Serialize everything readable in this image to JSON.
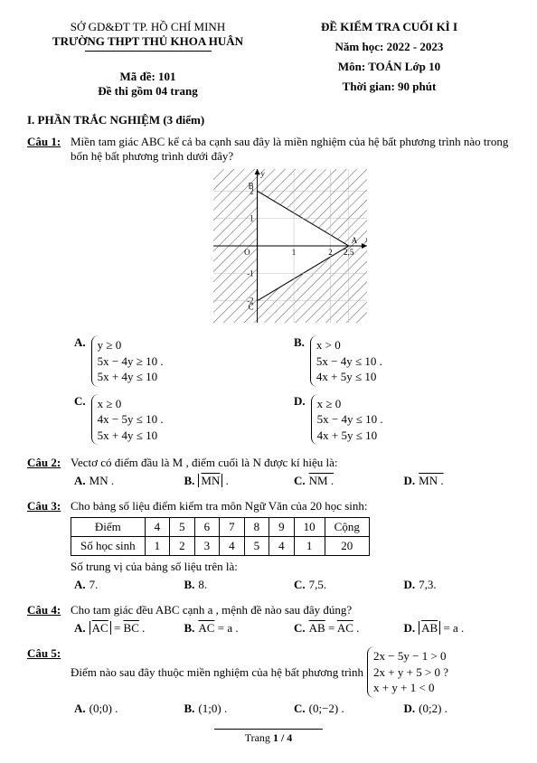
{
  "header": {
    "left_line1": "SỞ GD&ĐT TP. HỒ CHÍ MINH",
    "left_line2": "TRƯỜNG THPT THỦ KHOA HUÂN",
    "left_code": "Mã đề: 101",
    "left_pages": "Đề thi gồm 04 trang",
    "right_line1": "ĐỀ KIỂM TRA CUỐI KÌ I",
    "right_year": "Năm học: 2022 - 2023",
    "right_subject": "Môn: TOÁN Lớp 10",
    "right_time": "Thời gian: 90 phút"
  },
  "section1_title": "I. PHẦN TRẮC NGHIỆM (3 điểm)",
  "q1": {
    "label": "Câu 1:",
    "text": "Miền tam giác  ABC  kể cả ba cạnh sau đây là miền nghiệm của hệ bất phương trình nào trong bốn hệ bất phương trình dưới đây?",
    "A": [
      "y ≥ 0",
      "5x − 4y ≥ 10 .",
      "5x + 4y ≤ 10"
    ],
    "B": [
      "x > 0",
      "5x − 4y ≤ 10 .",
      "4x + 5y ≤ 10"
    ],
    "C": [
      "x ≥ 0",
      "4x − 5y ≤ 10 .",
      "5x + 4y ≤ 10"
    ],
    "D": [
      "x ≥ 0",
      "5x − 4y ≤ 10 .",
      "4x + 5y ≤ 10"
    ]
  },
  "q1_chart": {
    "type": "region-plot",
    "width": 170,
    "height": 170,
    "background": "#ffffff",
    "axis_color": "#000000",
    "grid_color": "#bbbbbb",
    "hatch_color": "#555555",
    "region_color": "rgba(255,255,255,0)",
    "xlim": [
      -1.2,
      3.0
    ],
    "ylim": [
      -2.8,
      2.8
    ],
    "points": {
      "A": [
        2.5,
        0
      ],
      "B": [
        0,
        2
      ],
      "C": [
        0,
        -2
      ]
    },
    "x_ticks": [
      1,
      2,
      2.5
    ],
    "y_ticks": [
      -2,
      -1,
      1,
      2
    ],
    "x_label": "x",
    "y_label": "y",
    "axis_fontsize": 9
  },
  "q2": {
    "label": "Câu 2:",
    "text": "Vectơ có điểm đầu là  M , điểm cuối là  N  được kí hiệu là:",
    "A": "MN .",
    "C": "NM .",
    "D": "MN ."
  },
  "q3": {
    "label": "Câu 3:",
    "text": "Cho bảng số liệu điểm kiểm tra môn Ngữ Văn của 20 học sinh:",
    "table": {
      "type": "table",
      "columns": [
        "Điểm",
        "4",
        "5",
        "6",
        "7",
        "8",
        "9",
        "10",
        "Cộng"
      ],
      "rows": [
        [
          "Số học sinh",
          "1",
          "2",
          "3",
          "4",
          "5",
          "4",
          "1",
          "20"
        ]
      ],
      "border_color": "#000000",
      "cell_padding": "2px 10px",
      "fontsize": 12
    },
    "after": "Số trung vị của bảng số liệu trên là:",
    "A": "7.",
    "B": "8.",
    "C": "7,5.",
    "D": "7,3."
  },
  "q4": {
    "label": "Câu 4:",
    "text": "Cho tam giác đều  ABC  cạnh  a , mệnh đề nào sau đây đúng?"
  },
  "q5": {
    "label": "Câu 5:",
    "text_before": "Điểm nào sau đây thuộc miền nghiệm của hệ bất phương trình ",
    "system": [
      "2x − 5y − 1 > 0",
      "2x + y + 5 > 0 ?",
      "x + y + 1 < 0"
    ],
    "A": "(0;0) .",
    "B": "(1;0) .",
    "C": "(0;−2) .",
    "D": "(0;2) ."
  },
  "footer": {
    "label": "Trang ",
    "page": "1 / 4"
  }
}
